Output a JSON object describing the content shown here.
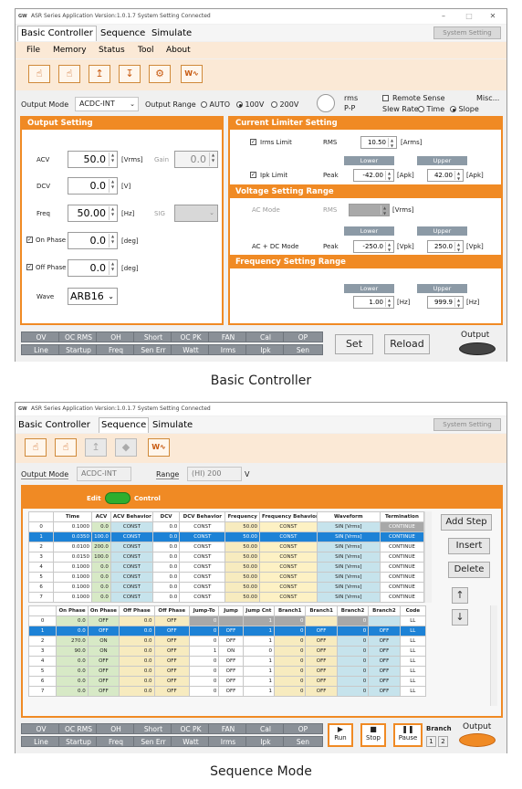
{
  "win1": {
    "title": "ASR Series Application Version:1.0.1.7 System Setting Connected",
    "tabs": [
      "Basic Controller",
      "Sequence",
      "Simulate"
    ],
    "system_setting": "System Setting",
    "menu": [
      "File",
      "Memory",
      "Status",
      "Tool",
      "About"
    ],
    "output_mode_label": "Output Mode",
    "output_mode_value": "ACDC-INT",
    "output_range_label": "Output Range",
    "range_auto": "AUTO",
    "range_100": "100V",
    "range_200": "200V",
    "rms": "rms",
    "pp": "P-P",
    "remote_sense": "Remote Sense",
    "misc": "Misc...",
    "slew_rate": "Slew Rate:",
    "slew_time": "Time",
    "slew_slope": "Slope",
    "output_setting": {
      "title": "Output Setting",
      "acv_label": "ACV",
      "acv_value": "50.0",
      "acv_unit": "[Vrms]",
      "gain_label": "Gain",
      "gain_value": "0.0",
      "dcv_label": "DCV",
      "dcv_value": "0.0",
      "dcv_unit": "[V]",
      "freq_label": "Freq",
      "freq_value": "50.00",
      "freq_unit": "[Hz]",
      "sig_label": "SIG",
      "onphase_label": "On Phase",
      "onphase_value": "0.0",
      "onphase_unit": "[deg]",
      "offphase_label": "Off Phase",
      "offphase_value": "0.0",
      "offphase_unit": "[deg]",
      "wave_label": "Wave",
      "wave_value": "ARB16"
    },
    "current_limiter": {
      "title": "Current Limiter Setting",
      "irms_label": "Irms Limit",
      "rms_label": "RMS",
      "irms_value": "10.50",
      "irms_unit": "[Arms]",
      "lower": "Lower",
      "upper": "Upper",
      "ipk_label": "Ipk Limit",
      "peak_label": "Peak",
      "ipk_lower": "-42.00",
      "ipk_upper": "42.00",
      "ipk_unit": "[Apk]"
    },
    "voltage_range": {
      "title": "Voltage Setting Range",
      "acmode_label": "AC Mode",
      "rms_label": "RMS",
      "acmode_unit": "[Vrms]",
      "lower": "Lower",
      "upper": "Upper",
      "acdc_label": "AC + DC Mode",
      "peak_label": "Peak",
      "lower_value": "-250.0",
      "lower_unit": "[Vpk]",
      "upper_value": "250.0",
      "upper_unit": "[Vpk]"
    },
    "freq_range": {
      "title": "Frequency Setting Range",
      "lower": "Lower",
      "upper": "Upper",
      "lower_value": "1.00",
      "lower_unit": "[Hz]",
      "upper_value": "999.9",
      "upper_unit": "[Hz]"
    },
    "status_row1": [
      "OV",
      "OC RMS",
      "OH",
      "Short",
      "OC PK",
      "FAN",
      "Cal",
      "OP"
    ],
    "status_row2": [
      "Line",
      "Startup",
      "Freq",
      "Sen Err",
      "Watt",
      "Irms",
      "Ipk",
      "Sen"
    ],
    "set": "Set",
    "reload": "Reload",
    "output": "Output"
  },
  "caption1": "Basic Controller",
  "win2": {
    "title": "ASR Series Application Version:1.0.1.7 System Setting Connected",
    "tabs": [
      "Basic Controller",
      "Sequence",
      "Simulate"
    ],
    "system_setting": "System Setting",
    "output_mode_label": "Output Mode",
    "output_mode_value": "ACDC-INT",
    "range_label": "Range",
    "range_value": "(HI) 200",
    "range_unit": "V",
    "edit": "Edit",
    "control": "Control",
    "add_step": "Add Step",
    "insert": "Insert",
    "delete": "Delete",
    "table1_headers": [
      "",
      "Time",
      "ACV",
      "ACV Behavior",
      "DCV",
      "DCV Behavior",
      "Frequency",
      "Frequency Behavior",
      "Waveform",
      "Termination"
    ],
    "table1_rows": [
      [
        "0",
        "0.1000",
        "0.0",
        "CONST",
        "0.0",
        "CONST",
        "50.00",
        "CONST",
        "SIN [Vrms]",
        "CONTINUE"
      ],
      [
        "1",
        "0.0350",
        "100.0",
        "CONST",
        "0.0",
        "CONST",
        "50.00",
        "CONST",
        "SIN [Vrms]",
        "CONTINUE"
      ],
      [
        "2",
        "0.0100",
        "200.0",
        "CONST",
        "0.0",
        "CONST",
        "50.00",
        "CONST",
        "SIN [Vrms]",
        "CONTINUE"
      ],
      [
        "3",
        "0.0150",
        "100.0",
        "CONST",
        "0.0",
        "CONST",
        "50.00",
        "CONST",
        "SIN [Vrms]",
        "CONTINUE"
      ],
      [
        "4",
        "0.1000",
        "0.0",
        "CONST",
        "0.0",
        "CONST",
        "50.00",
        "CONST",
        "SIN [Vrms]",
        "CONTINUE"
      ],
      [
        "5",
        "0.1000",
        "0.0",
        "CONST",
        "0.0",
        "CONST",
        "50.00",
        "CONST",
        "SIN [Vrms]",
        "CONTINUE"
      ],
      [
        "6",
        "0.1000",
        "0.0",
        "CONST",
        "0.0",
        "CONST",
        "50.00",
        "CONST",
        "SIN [Vrms]",
        "CONTINUE"
      ],
      [
        "7",
        "0.1000",
        "0.0",
        "CONST",
        "0.0",
        "CONST",
        "50.00",
        "CONST",
        "SIN [Vrms]",
        "CONTINUE"
      ]
    ],
    "table2_headers": [
      "",
      "On Phase",
      "On Phase",
      "Off Phase",
      "Off Phase",
      "Jump-To",
      "Jump",
      "Jump Cnt",
      "Branch1",
      "Branch1",
      "Branch2",
      "Branch2",
      "Code"
    ],
    "table2_rows": [
      [
        "0",
        "0.0",
        "OFF",
        "0.0",
        "OFF",
        "0",
        "",
        "1",
        "0",
        "",
        "0",
        "",
        "LL"
      ],
      [
        "1",
        "0.0",
        "OFF",
        "0.0",
        "OFF",
        "0",
        "OFF",
        "1",
        "0",
        "OFF",
        "0",
        "OFF",
        "LL"
      ],
      [
        "2",
        "270.0",
        "ON",
        "0.0",
        "OFF",
        "0",
        "OFF",
        "1",
        "0",
        "OFF",
        "0",
        "OFF",
        "LL"
      ],
      [
        "3",
        "90.0",
        "ON",
        "0.0",
        "OFF",
        "1",
        "ON",
        "0",
        "0",
        "OFF",
        "0",
        "OFF",
        "LL"
      ],
      [
        "4",
        "0.0",
        "OFF",
        "0.0",
        "OFF",
        "0",
        "OFF",
        "1",
        "0",
        "OFF",
        "0",
        "OFF",
        "LL"
      ],
      [
        "5",
        "0.0",
        "OFF",
        "0.0",
        "OFF",
        "0",
        "OFF",
        "1",
        "0",
        "OFF",
        "0",
        "OFF",
        "LL"
      ],
      [
        "6",
        "0.0",
        "OFF",
        "0.0",
        "OFF",
        "0",
        "OFF",
        "1",
        "0",
        "OFF",
        "0",
        "OFF",
        "LL"
      ],
      [
        "7",
        "0.0",
        "OFF",
        "0.0",
        "OFF",
        "0",
        "OFF",
        "1",
        "0",
        "OFF",
        "0",
        "OFF",
        "LL"
      ]
    ],
    "status_row1": [
      "OV",
      "OC RMS",
      "OH",
      "Short",
      "OC PK",
      "FAN",
      "Cal",
      "OP"
    ],
    "status_row2": [
      "Line",
      "Startup",
      "Freq",
      "Sen Err",
      "Watt",
      "Irms",
      "Ipk",
      "Sen"
    ],
    "run": "Run",
    "stop": "Stop",
    "pause": "Pause",
    "branch": "Branch",
    "branch1": "1",
    "branch2": "2",
    "output": "Output"
  },
  "caption2": "Sequence Mode",
  "colors": {
    "accent": "#f08a24",
    "selected_row": "#1d82d6",
    "edit_toggle": "#2eae2e"
  }
}
